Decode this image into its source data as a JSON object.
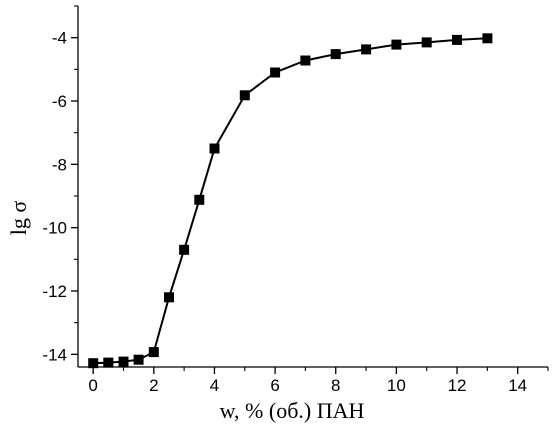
{
  "chart_data": {
    "type": "line",
    "title": "",
    "xlabel": "w, % (об.) ПАН",
    "ylabel": "lg σ",
    "xlim": [
      -0.5,
      15
    ],
    "ylim": [
      -14.4,
      -3.0
    ],
    "grid": false,
    "legend": "none",
    "x_ticks": [
      0,
      2,
      4,
      6,
      8,
      10,
      12,
      14
    ],
    "x_tick_labels": [
      "0",
      "2",
      "4",
      "6",
      "8",
      "10",
      "12",
      "14"
    ],
    "y_ticks": [
      -4,
      -6,
      -8,
      -10,
      -12,
      -14
    ],
    "y_tick_labels": [
      "-4",
      "-6",
      "-8",
      "-10",
      "-12",
      "-14"
    ],
    "series": [
      {
        "marker": "square",
        "color": "#000000",
        "x": [
          0,
          0.5,
          1,
          1.5,
          2,
          2.5,
          3,
          3.5,
          4,
          5,
          6,
          7,
          8,
          9,
          10,
          11,
          12,
          13
        ],
        "y": [
          -14.28,
          -14.26,
          -14.23,
          -14.17,
          -13.93,
          -12.2,
          -10.7,
          -9.12,
          -7.5,
          -5.82,
          -5.1,
          -4.72,
          -4.52,
          -4.37,
          -4.22,
          -4.15,
          -4.07,
          -4.02
        ]
      }
    ]
  }
}
